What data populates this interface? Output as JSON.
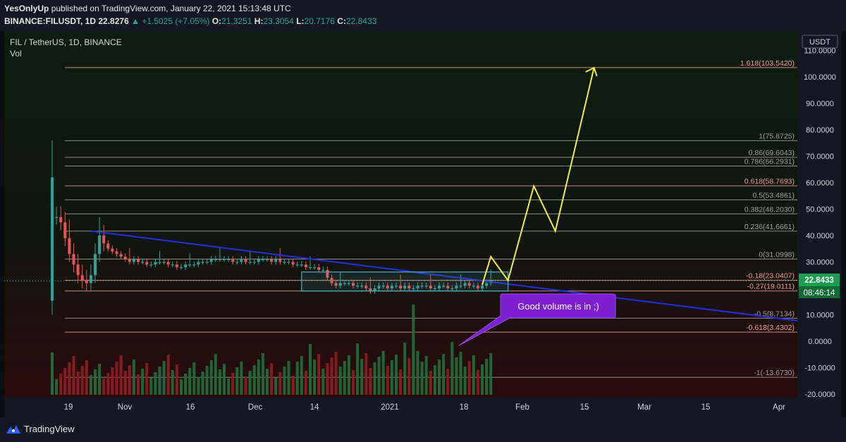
{
  "header": {
    "user": "YesOnlyUp",
    "published": " published on TradingView.com, January 22, 2021 15:13:48 UTC",
    "symbol": "BINANCE:FILUSDT, 1D",
    "last": "22.8276",
    "change": "▲ +1.5025 (+7.05%)",
    "o_label": "O:",
    "o": "21.3251",
    "h_label": "H:",
    "h": "23.3054",
    "l_label": "L:",
    "l": "20.7176",
    "c_label": "C:",
    "c": "22.8433"
  },
  "legend": {
    "title": "FIL / TetherUS, 1D, BINANCE",
    "vol": "Vol"
  },
  "axis": {
    "currency": "USDT",
    "last_price": "22.8433",
    "countdown": "08:46:14"
  },
  "annotation": "Good volume is in ;)",
  "footer": {
    "brand": "TradingView"
  },
  "colors": {
    "up": "#26a69a",
    "down": "#ef5350",
    "trend": "#2432e0",
    "projection": "#f2ef3a",
    "box": "#3fb6c8",
    "callout": "#7b1fd1"
  },
  "chart_data": {
    "type": "candlestick",
    "y_ticks": [
      "110.0000",
      "100.0000",
      "90.0000",
      "80.0000",
      "70.0000",
      "60.0000",
      "50.0000",
      "40.0000",
      "30.0000",
      "20.0000",
      "10.0000",
      "0.0000",
      "-10.0000",
      "-20.0000"
    ],
    "x_ticks": [
      "19",
      "Nov",
      "16",
      "Dec",
      "14",
      "2021",
      "18",
      "Feb",
      "15",
      "Mar",
      "15",
      "Apr"
    ],
    "fib_levels": [
      {
        "label": "1.618(103.5420)",
        "value": 103.542,
        "color": "#ef9a9a"
      },
      {
        "label": "1(75.8725)",
        "value": 75.8725,
        "color": "#9e9e9e"
      },
      {
        "label": "0.86(69.6043)",
        "value": 69.6043,
        "color": "#9e9e9e"
      },
      {
        "label": "0.786(66.2931)",
        "value": 66.2931,
        "color": "#9e9e9e"
      },
      {
        "label": "0.618(58.7693)",
        "value": 58.7693,
        "color": "#ef9a9a"
      },
      {
        "label": "0.5(53.4861)",
        "value": 53.4861,
        "color": "#9e9e9e"
      },
      {
        "label": "0.382(48.2030)",
        "value": 48.203,
        "color": "#9e9e9e"
      },
      {
        "label": "0.236(41.6661)",
        "value": 41.6661,
        "color": "#9e9e9e"
      },
      {
        "label": "0(31.0998)",
        "value": 31.0998,
        "color": "#9e9e9e"
      },
      {
        "label": "-0.18(23.0407)",
        "value": 23.0407,
        "color": "#ef9a9a"
      },
      {
        "label": "-0.27(19.0111)",
        "value": 19.0111,
        "color": "#ef9a9a"
      },
      {
        "label": "-0.5(8.7134)",
        "value": 8.7134,
        "color": "#9e9e9e"
      },
      {
        "label": "-0.618(3.4302)",
        "value": 3.4302,
        "color": "#ef9a9a"
      },
      {
        "label": "-1(-13.6730)",
        "value": -13.673,
        "color": "#9e9e9e"
      }
    ],
    "price_stats": {
      "start_index": 0,
      "initial_spike": {
        "open": 62,
        "high": 76,
        "low": 10,
        "close": 47
      },
      "closes": [
        47,
        45,
        39,
        33,
        29,
        25,
        23,
        22,
        25,
        33,
        40,
        37,
        35,
        34,
        33,
        32,
        31,
        30,
        31,
        30,
        30,
        29,
        29,
        30,
        30,
        30,
        29,
        29,
        28,
        28,
        29,
        29,
        29,
        30,
        30,
        30,
        31,
        31,
        31,
        31,
        31,
        30,
        30,
        31,
        30,
        30,
        30,
        31,
        31,
        31,
        30,
        31,
        30,
        30,
        30,
        29,
        29,
        29,
        28,
        28,
        28,
        27,
        27,
        24,
        22,
        21,
        22,
        22,
        22,
        21,
        21,
        21,
        20,
        19,
        20,
        21,
        21,
        20,
        21,
        21,
        20,
        21,
        20,
        20,
        21,
        21,
        21,
        20,
        20,
        21,
        21,
        20,
        20,
        21,
        21,
        22,
        21,
        21,
        20,
        21,
        22,
        23
      ]
    },
    "projection_path": [
      {
        "day": 100,
        "value": 21.3
      },
      {
        "day": 102,
        "value": 32.0
      },
      {
        "day": 106,
        "value": 23.0
      },
      {
        "day": 112,
        "value": 58.7
      },
      {
        "day": 117,
        "value": 41.7
      },
      {
        "day": 126,
        "value": 103.5
      },
      {
        "day": 123,
        "value": 100.6
      }
    ],
    "trendline": [
      {
        "day": 9,
        "value": 41.7
      },
      {
        "day": 160,
        "value": 10.5
      }
    ],
    "consolidation_box": {
      "day_start": 58,
      "day_end": 106,
      "top": 26.2,
      "bottom": 19.0
    },
    "volume_peak_day": 84
  }
}
